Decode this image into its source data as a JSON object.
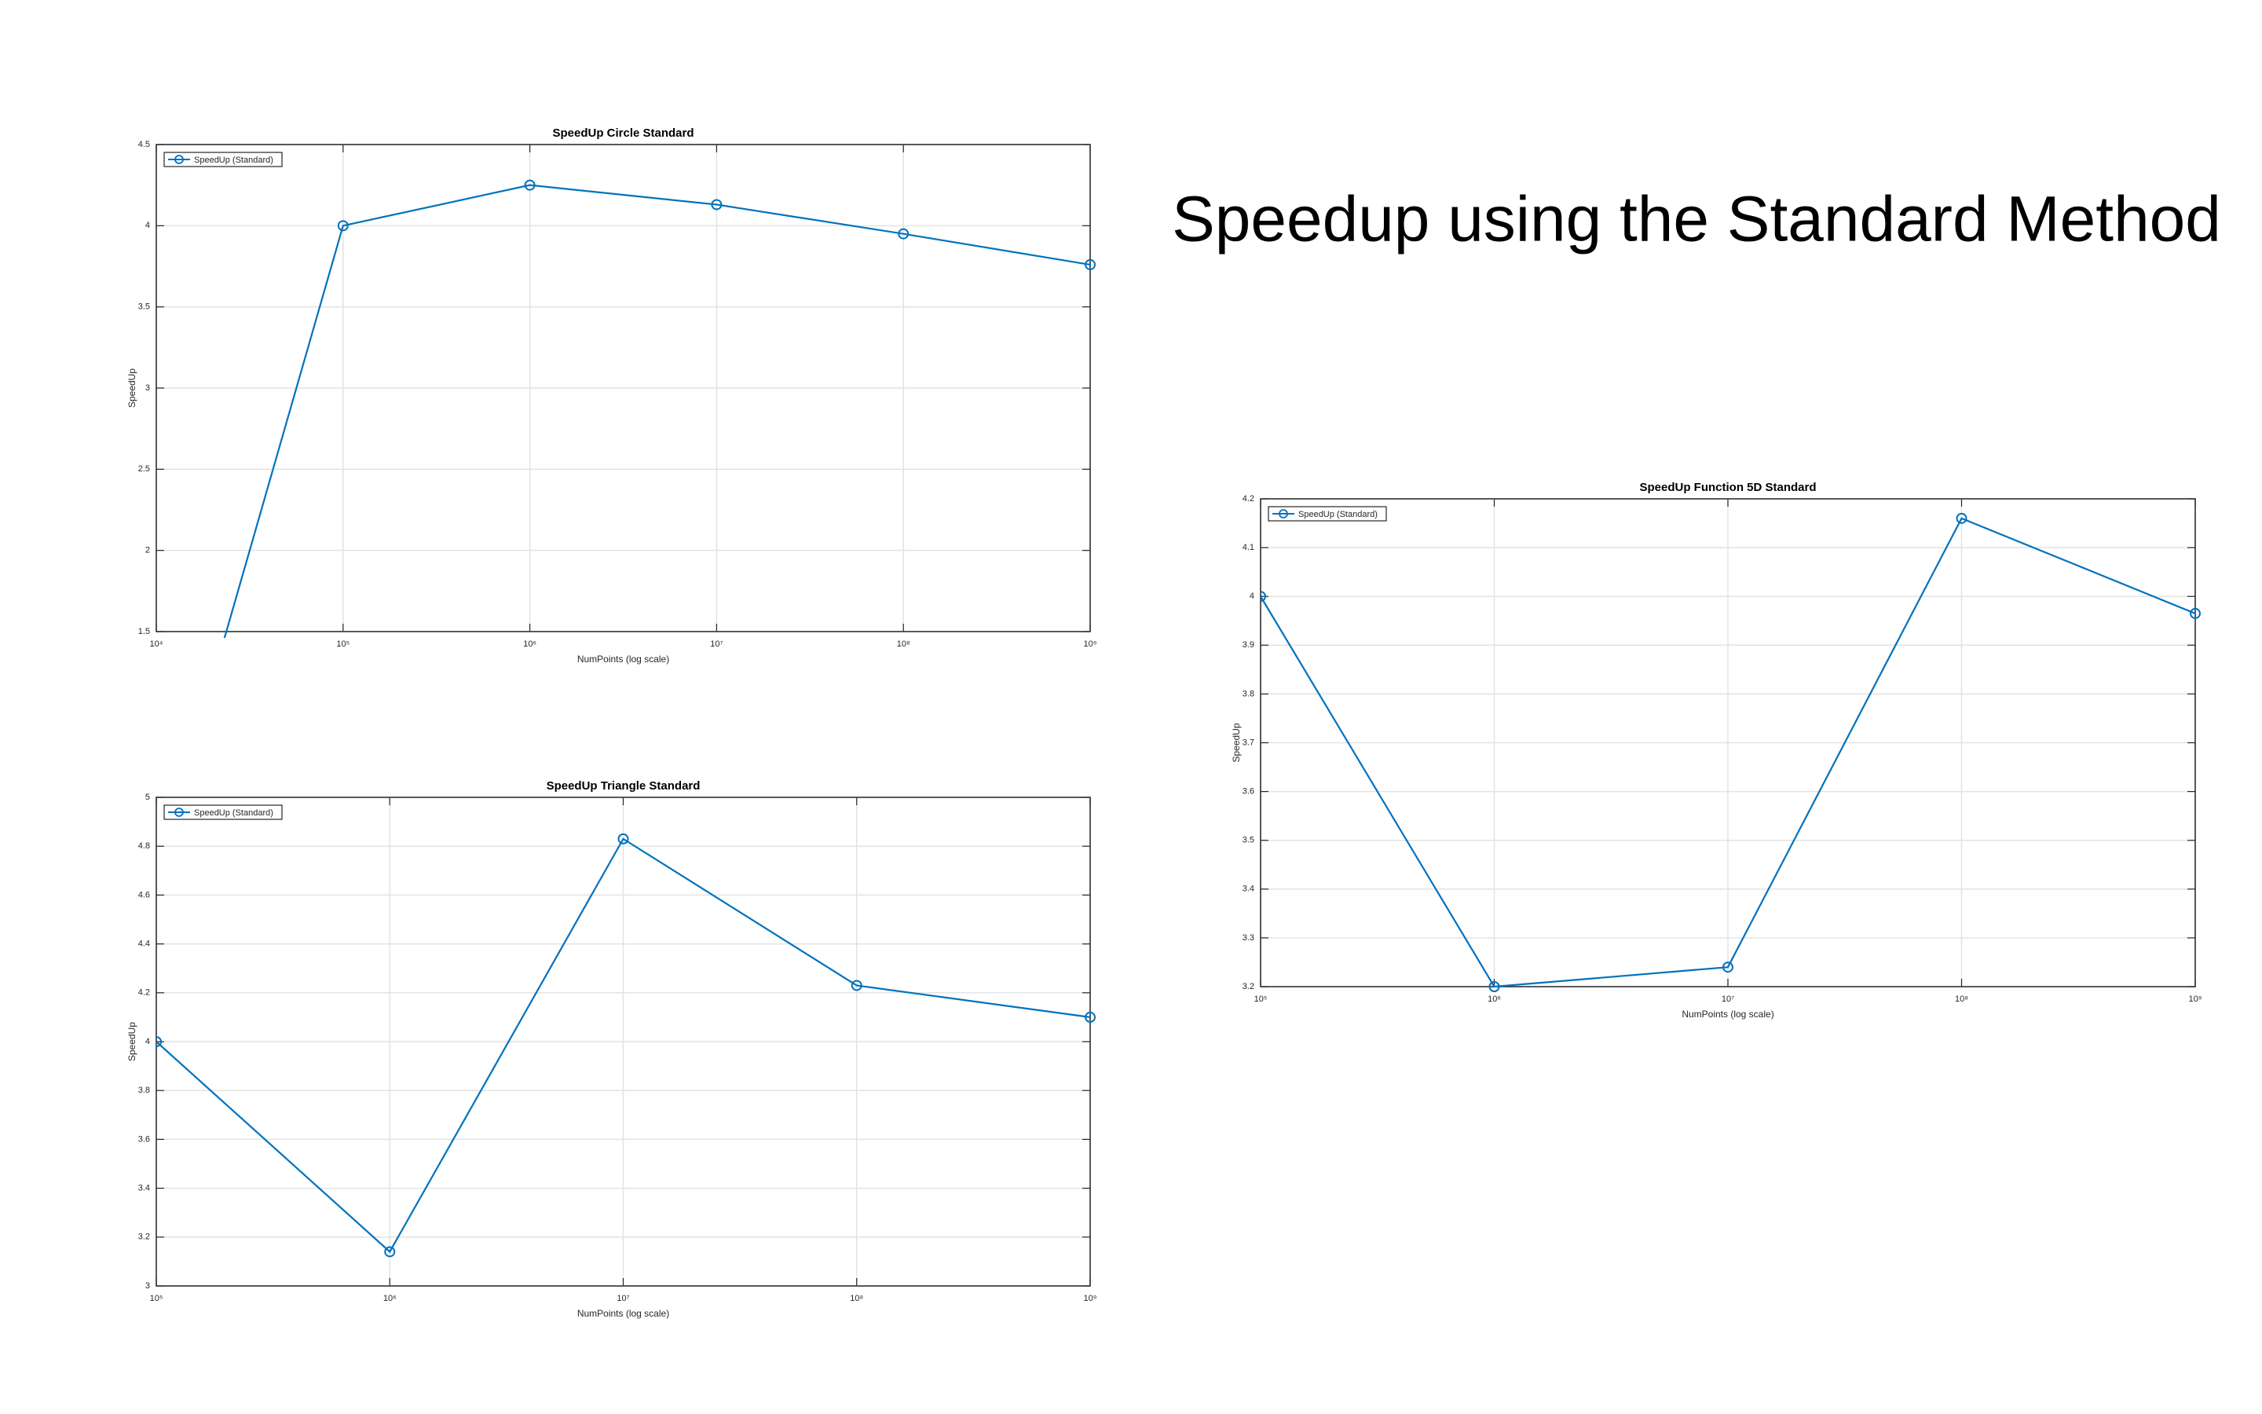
{
  "slide_title": "Speedup using the Standard Method",
  "chart_data": [
    {
      "type": "line",
      "title": "SpeedUp Circle Standard",
      "xlabel": "NumPoints (log scale)",
      "ylabel": "SpeedUp",
      "x": [
        10000,
        100000,
        1000000,
        10000000,
        100000000,
        1000000000
      ],
      "series": [
        {
          "name": "SpeedUp (Standard)",
          "color": "#0072bd",
          "values": [
            0.0,
            4.0,
            4.25,
            4.13,
            3.95,
            3.76
          ]
        }
      ],
      "xlog": true,
      "xlim": [
        10000,
        1000000000
      ],
      "xticks": [
        {
          "value": 10000,
          "label": "10⁴"
        },
        {
          "value": 100000,
          "label": "10⁵"
        },
        {
          "value": 1000000,
          "label": "10⁶"
        },
        {
          "value": 10000000,
          "label": "10⁷"
        },
        {
          "value": 100000000,
          "label": "10⁸"
        },
        {
          "value": 1000000000,
          "label": "10⁹"
        }
      ],
      "ylim": [
        1.5,
        4.5
      ],
      "yticks": [
        1.5,
        2,
        2.5,
        3,
        3.5,
        4,
        4.5
      ],
      "grid": true,
      "legend": "top-left"
    },
    {
      "type": "line",
      "title": "SpeedUp Triangle Standard",
      "xlabel": "NumPoints (log scale)",
      "ylabel": "SpeedUp",
      "x": [
        100000,
        1000000,
        10000000,
        100000000,
        1000000000
      ],
      "series": [
        {
          "name": "SpeedUp (Standard)",
          "color": "#0072bd",
          "values": [
            4.0,
            3.14,
            4.83,
            4.23,
            4.1
          ]
        }
      ],
      "xlog": true,
      "xlim": [
        100000,
        1000000000
      ],
      "xticks": [
        {
          "value": 100000,
          "label": "10⁵"
        },
        {
          "value": 1000000,
          "label": "10⁶"
        },
        {
          "value": 10000000,
          "label": "10⁷"
        },
        {
          "value": 100000000,
          "label": "10⁸"
        },
        {
          "value": 1000000000,
          "label": "10⁹"
        }
      ],
      "ylim": [
        3,
        5
      ],
      "yticks": [
        3,
        3.2,
        3.4,
        3.6,
        3.8,
        4,
        4.2,
        4.4,
        4.6,
        4.8,
        5
      ],
      "grid": true,
      "legend": "top-left"
    },
    {
      "type": "line",
      "title": "SpeedUp Function 5D Standard",
      "xlabel": "NumPoints (log scale)",
      "ylabel": "SpeedUp",
      "x": [
        100000,
        1000000,
        10000000,
        100000000,
        1000000000
      ],
      "series": [
        {
          "name": "SpeedUp (Standard)",
          "color": "#0072bd",
          "values": [
            4.0,
            3.2,
            3.24,
            4.16,
            3.965
          ]
        }
      ],
      "xlog": true,
      "xlim": [
        100000,
        1000000000
      ],
      "xticks": [
        {
          "value": 100000,
          "label": "10⁵"
        },
        {
          "value": 1000000,
          "label": "10⁶"
        },
        {
          "value": 10000000,
          "label": "10⁷"
        },
        {
          "value": 100000000,
          "label": "10⁸"
        },
        {
          "value": 1000000000,
          "label": "10⁹"
        }
      ],
      "ylim": [
        3.2,
        4.2
      ],
      "yticks": [
        3.2,
        3.3,
        3.4,
        3.5,
        3.6,
        3.7,
        3.8,
        3.9,
        4,
        4.1,
        4.2
      ],
      "grid": true,
      "legend": "top-left"
    }
  ]
}
